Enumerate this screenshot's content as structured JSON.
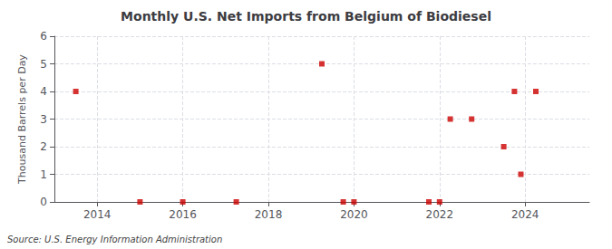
{
  "chart_data": {
    "type": "scatter",
    "title": "Monthly U.S. Net Imports from Belgium of Biodiesel",
    "ylabel": "Thousand Barrels per Day",
    "annotations": [
      "Source: U.S. Energy Information Administration"
    ],
    "x": [
      2013.5,
      2015.0,
      2016.0,
      2017.25,
      2019.25,
      2019.75,
      2020.0,
      2021.75,
      2022.0,
      2022.25,
      2022.75,
      2023.5,
      2023.75,
      2023.9,
      2024.25
    ],
    "values": [
      4,
      0,
      0,
      0,
      5,
      0,
      0,
      0,
      0,
      3,
      3,
      2,
      4,
      1,
      4
    ],
    "color": "#cc0000",
    "marker": "square",
    "xlim": [
      2013.0,
      2025.5
    ],
    "xticks": [
      2014,
      2016,
      2018,
      2020,
      2022,
      2024
    ],
    "ylim": [
      0,
      6
    ],
    "yticks": [
      0,
      1,
      2,
      3,
      4,
      5,
      6
    ],
    "grid": true
  }
}
